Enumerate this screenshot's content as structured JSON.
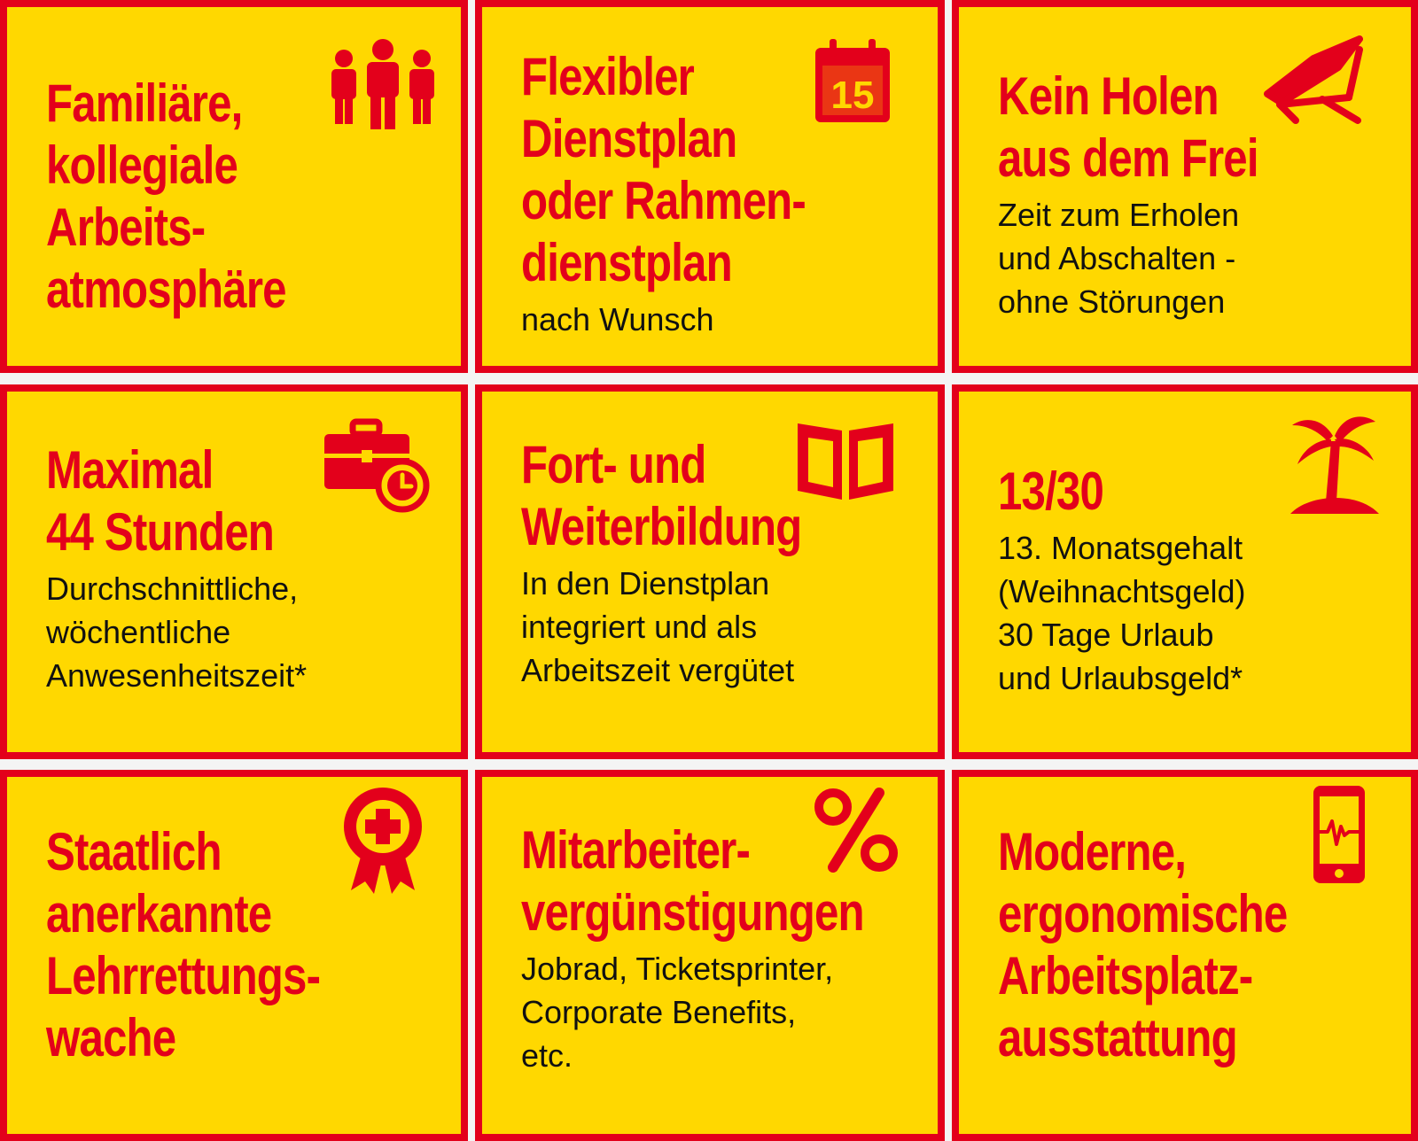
{
  "theme": {
    "background": "#ffd800",
    "border": "#e3001b",
    "title_color": "#e3001b",
    "text_color": "#111111"
  },
  "tiles": [
    {
      "icon": "people-icon",
      "title": [
        "Familiäre,",
        "kollegiale",
        "Arbeits-",
        "atmosphäre"
      ],
      "desc": []
    },
    {
      "icon": "calendar-icon",
      "icon_text": "15",
      "title": [
        "Flexibler",
        "Dienstplan",
        "oder Rahmen-",
        "dienstplan"
      ],
      "desc": [
        "nach Wunsch"
      ]
    },
    {
      "icon": "deck-chair-icon",
      "title": [
        "Kein Holen",
        "aus dem Frei"
      ],
      "desc": [
        "Zeit zum Erholen",
        "und Abschalten -",
        "ohne Störungen"
      ]
    },
    {
      "icon": "briefcase-clock-icon",
      "title": [
        "Maximal",
        "44 Stunden"
      ],
      "desc": [
        "Durchschnittliche,",
        "wöchentliche",
        "Anwesenheitszeit*"
      ]
    },
    {
      "icon": "book-icon",
      "title": [
        "Fort- und",
        "Weiterbildung"
      ],
      "desc": [
        "In den Dienstplan",
        "integriert und als",
        "Arbeitszeit vergütet"
      ]
    },
    {
      "icon": "palm-island-icon",
      "title": [
        "13/30"
      ],
      "desc": [
        "13. Monatsgehalt",
        "(Weihnachtsgeld)",
        "30 Tage Urlaub",
        "und Urlaubsgeld*"
      ]
    },
    {
      "icon": "award-badge-icon",
      "title": [
        "Staatlich",
        "anerkannte",
        "Lehrrettungs-",
        "wache"
      ],
      "desc": []
    },
    {
      "icon": "percent-icon",
      "title": [
        "Mitarbeiter-",
        "vergünstigungen"
      ],
      "desc": [
        "Jobrad, Ticketsprinter,",
        "Corporate Benefits,",
        "etc."
      ]
    },
    {
      "icon": "smartphone-pulse-icon",
      "title": [
        "Moderne,",
        "ergonomische",
        "Arbeitsplatz-",
        "ausstattung"
      ],
      "desc": []
    }
  ]
}
